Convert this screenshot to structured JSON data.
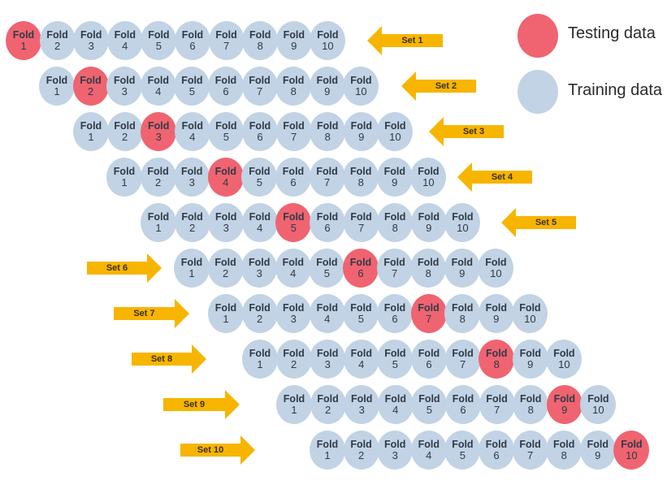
{
  "fold_word": "Fold",
  "colors": {
    "testing": "#ef6470",
    "training": "#c1d3e4",
    "arrow": "#f7b500"
  },
  "legend": {
    "testing_label": "Testing data",
    "training_label": "Training data"
  },
  "sets": [
    {
      "label": "Set 1",
      "test_fold": 1,
      "folds": [
        1,
        2,
        3,
        4,
        5,
        6,
        7,
        8,
        9,
        10
      ]
    },
    {
      "label": "Set 2",
      "test_fold": 2,
      "folds": [
        1,
        2,
        3,
        4,
        5,
        6,
        7,
        8,
        9,
        10
      ]
    },
    {
      "label": "Set 3",
      "test_fold": 3,
      "folds": [
        1,
        2,
        3,
        4,
        5,
        6,
        7,
        8,
        9,
        10
      ]
    },
    {
      "label": "Set 4",
      "test_fold": 4,
      "folds": [
        1,
        2,
        3,
        4,
        5,
        6,
        7,
        8,
        9,
        10
      ]
    },
    {
      "label": "Set 5",
      "test_fold": 5,
      "folds": [
        1,
        2,
        3,
        4,
        5,
        6,
        7,
        8,
        9,
        10
      ]
    },
    {
      "label": "Set 6",
      "test_fold": 6,
      "folds": [
        1,
        2,
        3,
        4,
        5,
        6,
        7,
        8,
        9,
        10
      ]
    },
    {
      "label": "Set 7",
      "test_fold": 7,
      "folds": [
        1,
        2,
        3,
        4,
        5,
        6,
        7,
        8,
        9,
        10
      ]
    },
    {
      "label": "Set 8",
      "test_fold": 8,
      "folds": [
        1,
        2,
        3,
        4,
        5,
        6,
        7,
        8,
        9,
        10
      ]
    },
    {
      "label": "Set 9",
      "test_fold": 9,
      "folds": [
        1,
        2,
        3,
        4,
        5,
        6,
        7,
        8,
        9,
        10
      ]
    },
    {
      "label": "Set 10",
      "test_fold": 10,
      "folds": [
        1,
        2,
        3,
        4,
        5,
        6,
        7,
        8,
        9,
        10
      ]
    }
  ]
}
